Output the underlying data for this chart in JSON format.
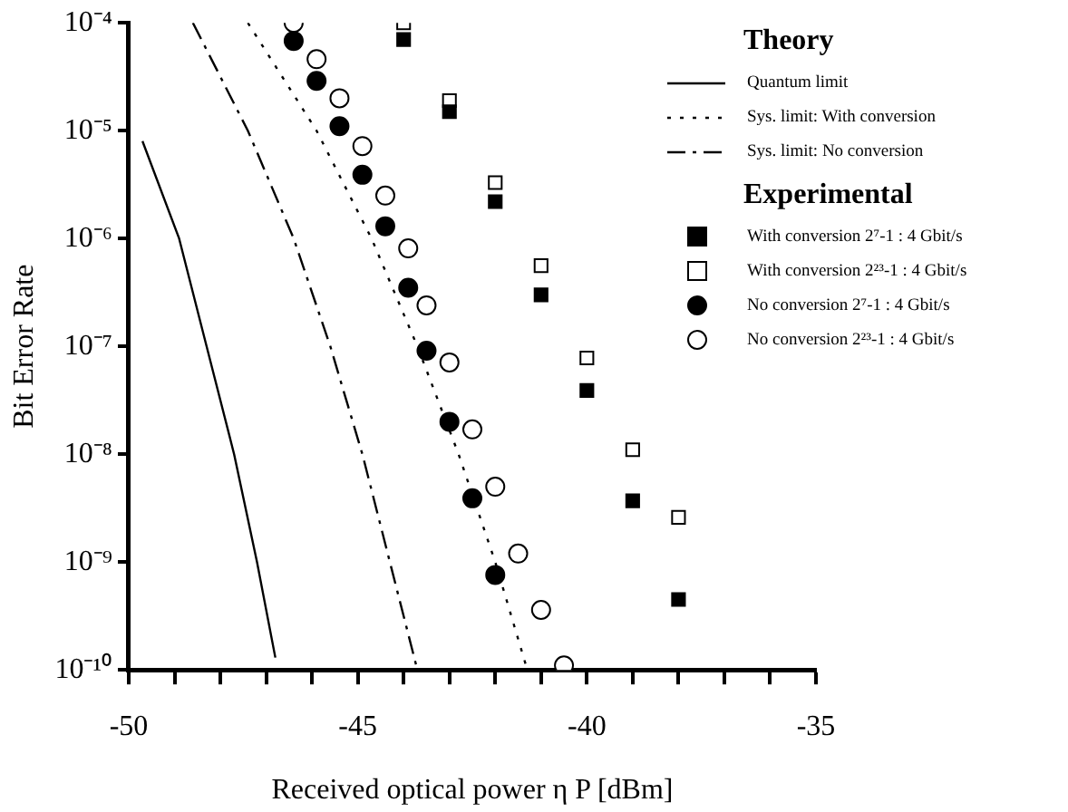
{
  "chart_data": {
    "type": "scatter",
    "xlabel": "Received optical power η P [dBm]",
    "ylabel": "Bit Error Rate",
    "legend_title": "Theory",
    "annotations": [
      "Experimental"
    ],
    "legend": "top right",
    "log": "y",
    "grid": false,
    "xlim": [
      -50,
      -35
    ],
    "xticks": [
      -50,
      {
        "value": -49,
        "label": null
      },
      {
        "value": -48,
        "label": null
      },
      {
        "value": -47,
        "label": null
      },
      {
        "value": -46,
        "label": null
      },
      -45,
      {
        "value": -44,
        "label": null
      },
      {
        "value": -43,
        "label": null
      },
      {
        "value": -42,
        "label": null
      },
      {
        "value": -41,
        "label": null
      },
      -40,
      {
        "value": -39,
        "label": null
      },
      {
        "value": -38,
        "label": null
      },
      {
        "value": -37,
        "label": null
      },
      {
        "value": -36,
        "label": null
      },
      -35
    ],
    "ylim": [
      1e-10,
      0.0001
    ],
    "yticks": [
      {
        "value": 1e-10,
        "label": "10⁻¹⁰"
      },
      {
        "value": 1e-09,
        "label": "10⁻⁹"
      },
      {
        "value": 1e-08,
        "label": "10⁻⁸"
      },
      {
        "value": 1e-07,
        "label": "10⁻⁷"
      },
      {
        "value": 1e-06,
        "label": "10⁻⁶"
      },
      {
        "value": 1e-05,
        "label": "10⁻⁵"
      },
      {
        "value": 0.0001,
        "label": "10⁻⁴"
      }
    ],
    "series": [
      {
        "type": "line",
        "name": "Quantum limit",
        "color": "#000000",
        "line_style": "solid",
        "marker": "none",
        "x": [
          -49.7,
          -48.9,
          -48.3,
          -47.7,
          -47.2,
          -46.8
        ],
        "values": [
          8e-06,
          1e-06,
          1e-07,
          1e-08,
          1e-09,
          1.3e-10
        ]
      },
      {
        "type": "line",
        "name": "Sys. limit: With conversion",
        "color": "#000000",
        "line_style": "dotted",
        "marker": "none",
        "x": [
          -47.4,
          -45.9,
          -44.7,
          -43.7,
          -42.8,
          -42.0,
          -41.3
        ],
        "values": [
          0.0001,
          1e-05,
          1e-06,
          1e-07,
          1e-08,
          1e-09,
          1e-10
        ]
      },
      {
        "type": "line",
        "name": "Sys. limit: No conversion",
        "color": "#000000",
        "line_style": "dashed",
        "marker": "none",
        "x": [
          -48.6,
          -47.4,
          -46.4,
          -45.6,
          -44.9,
          -44.3,
          -43.7
        ],
        "values": [
          0.0001,
          1e-05,
          1e-06,
          1e-07,
          1e-08,
          1e-09,
          1e-10
        ]
      },
      {
        "name": "With conversion 2⁷-1 : 4 Gbit/s",
        "color": "#000000",
        "marker": "square",
        "x": [
          -44,
          -43,
          -42,
          -41,
          -40,
          -39,
          -38
        ],
        "values": [
          7e-05,
          1.5e-05,
          2.2e-06,
          3e-07,
          3.9e-08,
          3.7e-09,
          4.5e-10
        ]
      },
      {
        "name": "With conversion 2²³-1 : 4 Gbit/s",
        "color": "#ffffff",
        "marker": "square",
        "x": [
          -44,
          -43,
          -42,
          -41,
          -40,
          -39,
          -38
        ],
        "values": [
          0.0001,
          1.9e-05,
          3.3e-06,
          5.6e-07,
          7.8e-08,
          1.1e-08,
          2.6e-09
        ]
      },
      {
        "name": "No conversion 2⁷-1 : 4 Gbit/s",
        "color": "#000000",
        "marker": "circle",
        "x": [
          -46.4,
          -45.9,
          -45.4,
          -44.9,
          -44.4,
          -43.9,
          -43.5,
          -43.0,
          -42.5,
          -42.0
        ],
        "values": [
          6.8e-05,
          2.9e-05,
          1.1e-05,
          3.9e-06,
          1.3e-06,
          3.5e-07,
          9.1e-08,
          2e-08,
          3.9e-09,
          7.6e-10
        ]
      },
      {
        "name": "No conversion 2²³-1 : 4 Gbit/s",
        "color": "#ffffff",
        "marker": "circle",
        "x": [
          -46.4,
          -45.9,
          -45.4,
          -44.9,
          -44.4,
          -43.9,
          -43.5,
          -43.0,
          -42.5,
          -42.0,
          -41.5,
          -41.0,
          -40.5
        ],
        "values": [
          0.0001,
          4.6e-05,
          2e-05,
          7.2e-06,
          2.5e-06,
          8.1e-07,
          2.4e-07,
          7.1e-08,
          1.7e-08,
          5e-09,
          1.2e-09,
          3.6e-10,
          1.1e-10
        ]
      }
    ]
  }
}
